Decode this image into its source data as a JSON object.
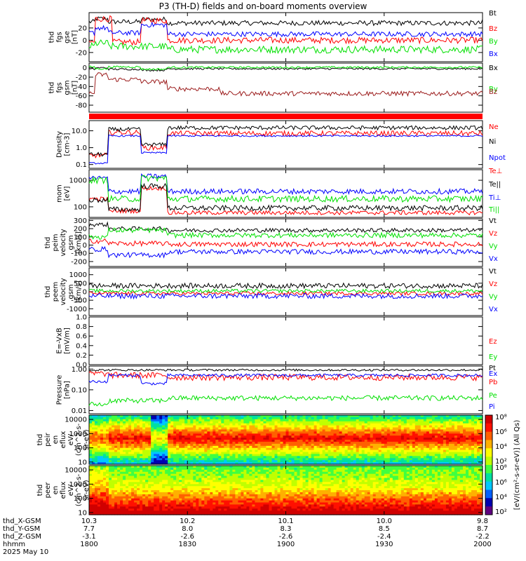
{
  "title": "P3 (TH-D) fields and on-board moments overview",
  "colors": {
    "black": "#000000",
    "red": "#ff0000",
    "green": "#00e000",
    "blue": "#0000ff",
    "darkred": "#9b1b1b"
  },
  "chart_data": [
    {
      "type": "line",
      "id": "fgs_gse",
      "ylabel_lines": [
        "thd",
        "fgs",
        "gse",
        "[nT]"
      ],
      "ylim": [
        -35,
        45
      ],
      "log": false,
      "yticks": [
        {
          "v": 20,
          "t": "20"
        },
        {
          "v": 0,
          "t": "0"
        },
        {
          "v": -20,
          "t": "-20"
        }
      ],
      "series": [
        {
          "name": "Bt",
          "color": "#000000",
          "level": 30,
          "noise": 4,
          "lows": [
            [
              5,
              15,
              35
            ],
            [
              40,
              60,
              34
            ],
            [
              60,
              300,
              28
            ]
          ]
        },
        {
          "name": "Bz",
          "color": "#ff0000",
          "level": -3,
          "noise": 5,
          "lows": [
            [
              5,
              18,
              35
            ],
            [
              40,
              60,
              32
            ],
            [
              60,
              300,
              0
            ]
          ]
        },
        {
          "name": "By",
          "color": "#00e000",
          "level": -10,
          "noise": 6,
          "lows": [
            [
              5,
              15,
              -5
            ],
            [
              40,
              60,
              -10
            ],
            [
              60,
              300,
              -15
            ]
          ]
        },
        {
          "name": "Bx",
          "color": "#0000ff",
          "level": 12,
          "noise": 4,
          "lows": [
            [
              5,
              15,
              20
            ],
            [
              40,
              60,
              25
            ],
            [
              60,
              300,
              10
            ]
          ]
        }
      ]
    },
    {
      "type": "line",
      "id": "fgs_gsm",
      "ylabel_lines": [
        "thd",
        "fgs",
        "gsm",
        "[nT]"
      ],
      "ylim": [
        -95,
        10
      ],
      "log": false,
      "yticks": [
        {
          "v": 0,
          "t": "0"
        },
        {
          "v": -20,
          "t": "-20"
        },
        {
          "v": -40,
          "t": "-40"
        },
        {
          "v": -60,
          "t": "-60"
        },
        {
          "v": -80,
          "t": "-80"
        }
      ],
      "series": [
        {
          "name": "Bx",
          "color": "#000000",
          "level": -3,
          "noise": 2,
          "lows": [
            [
              5,
              15,
              0
            ],
            [
              40,
              60,
              -5
            ],
            [
              60,
              300,
              -2
            ]
          ]
        },
        {
          "name": "By",
          "color": "#00e000",
          "level": 2,
          "noise": 2,
          "lows": [
            [
              5,
              15,
              -2
            ],
            [
              40,
              60,
              -3
            ],
            [
              60,
              300,
              1
            ]
          ]
        },
        {
          "name": "Bz",
          "color": "#9b1b1b",
          "level": -55,
          "noise": 5,
          "lows": [
            [
              5,
              15,
              -15
            ],
            [
              15,
              40,
              -25
            ],
            [
              40,
              60,
              -30
            ],
            [
              60,
              100,
              -45
            ],
            [
              100,
              300,
              -55
            ]
          ]
        }
      ]
    },
    {
      "type": "flag",
      "id": "flag",
      "color": "#ff0000"
    },
    {
      "type": "line",
      "id": "density",
      "ylabel_lines": [
        "Density",
        "[cm-3]"
      ],
      "ylim": [
        0.06,
        40
      ],
      "log": true,
      "yticks": [
        {
          "v": 10,
          "t": "10.0"
        },
        {
          "v": 1,
          "t": "1.0"
        },
        {
          "v": 0.1,
          "t": "0.1"
        }
      ],
      "series": [
        {
          "name": "Ne",
          "color": "#ff0000",
          "level": 7,
          "noise": 0.15,
          "lows": [
            [
              0,
              15,
              0.35
            ],
            [
              15,
              40,
              8
            ],
            [
              40,
              60,
              1
            ],
            [
              60,
              300,
              7
            ]
          ]
        },
        {
          "name": "Ni",
          "color": "#000000",
          "level": 15,
          "noise": 0.12,
          "lows": [
            [
              0,
              15,
              0.4
            ],
            [
              15,
              40,
              12
            ],
            [
              40,
              60,
              1.5
            ],
            [
              60,
              300,
              15
            ]
          ]
        },
        {
          "name": "Npot",
          "color": "#0000ff",
          "level": 5,
          "noise": 0.05,
          "lows": [
            [
              0,
              15,
              0.12
            ],
            [
              15,
              40,
              5
            ],
            [
              40,
              60,
              0.5
            ],
            [
              60,
              300,
              5
            ]
          ]
        }
      ]
    },
    {
      "type": "line",
      "id": "mom",
      "ylabel_lines": [
        "mom",
        "[eV]"
      ],
      "ylim": [
        40,
        2500
      ],
      "log": true,
      "yticks": [
        {
          "v": 1000,
          "t": "1000"
        },
        {
          "v": 100,
          "t": "100"
        }
      ],
      "series": [
        {
          "name": "Te⊥",
          "color": "#ff0000",
          "level": 60,
          "noise": 0.08,
          "lows": [
            [
              0,
              15,
              200
            ],
            [
              15,
              40,
              70
            ],
            [
              40,
              60,
              500
            ],
            [
              60,
              300,
              60
            ]
          ]
        },
        {
          "name": "Te||",
          "color": "#000000",
          "level": 90,
          "noise": 0.1,
          "lows": [
            [
              0,
              15,
              180
            ],
            [
              15,
              40,
              80
            ],
            [
              40,
              60,
              600
            ],
            [
              60,
              300,
              90
            ]
          ]
        },
        {
          "name": "Ti⊥",
          "color": "#0000ff",
          "level": 380,
          "noise": 0.1,
          "lows": [
            [
              0,
              15,
              1200
            ],
            [
              15,
              40,
              380
            ],
            [
              40,
              60,
              1400
            ],
            [
              60,
              300,
              380
            ]
          ]
        },
        {
          "name": "Ti||",
          "color": "#00e000",
          "level": 200,
          "noise": 0.12,
          "lows": [
            [
              0,
              15,
              1000
            ],
            [
              15,
              40,
              200
            ],
            [
              40,
              60,
              1200
            ],
            [
              60,
              300,
              200
            ]
          ]
        }
      ]
    },
    {
      "type": "line",
      "id": "peim",
      "ylabel_lines": [
        "thd",
        "peim",
        "velocity",
        "gsm",
        "[km/s]"
      ],
      "ylim": [
        -260,
        320
      ],
      "log": false,
      "yticks": [
        {
          "v": 300,
          "t": "300"
        },
        {
          "v": 200,
          "t": "200"
        },
        {
          "v": 100,
          "t": "100"
        },
        {
          "v": 0,
          "t": "0"
        },
        {
          "v": -100,
          "t": "-100"
        },
        {
          "v": -200,
          "t": "-200"
        }
      ],
      "series": [
        {
          "name": "Vt",
          "color": "#000000",
          "level": 180,
          "noise": 25,
          "lows": [
            [
              0,
              15,
              250
            ],
            [
              15,
              60,
              200
            ],
            [
              60,
              300,
              180
            ]
          ]
        },
        {
          "name": "Vz",
          "color": "#ff0000",
          "level": 10,
          "noise": 30,
          "lows": [
            [
              0,
              15,
              50
            ],
            [
              15,
              60,
              20
            ],
            [
              60,
              300,
              10
            ]
          ]
        },
        {
          "name": "Vy",
          "color": "#00e000",
          "level": 120,
          "noise": 30,
          "lows": [
            [
              0,
              15,
              100
            ],
            [
              15,
              60,
              180
            ],
            [
              60,
              300,
              120
            ]
          ]
        },
        {
          "name": "Vx",
          "color": "#0000ff",
          "level": -80,
          "noise": 30,
          "lows": [
            [
              0,
              15,
              -50
            ],
            [
              15,
              60,
              -120
            ],
            [
              60,
              300,
              -80
            ]
          ]
        }
      ]
    },
    {
      "type": "line",
      "id": "peem",
      "ylabel_lines": [
        "thd",
        "peem",
        "velocity",
        "gsm",
        "[km/s]"
      ],
      "ylim": [
        -1400,
        1400
      ],
      "log": false,
      "yticks": [
        {
          "v": 1000,
          "t": "1000"
        },
        {
          "v": 500,
          "t": "500"
        },
        {
          "v": 0,
          "t": "0"
        },
        {
          "v": -500,
          "t": "-500"
        },
        {
          "v": -1000,
          "t": "-1000"
        }
      ],
      "series": [
        {
          "name": "Vt",
          "color": "#000000",
          "level": 350,
          "noise": 150,
          "lows": [
            [
              0,
              300,
              350
            ]
          ]
        },
        {
          "name": "Vz",
          "color": "#ff0000",
          "level": -100,
          "noise": 100,
          "lows": [
            [
              0,
              300,
              -100
            ]
          ]
        },
        {
          "name": "Vy",
          "color": "#00e000",
          "level": 50,
          "noise": 100,
          "lows": [
            [
              0,
              300,
              50
            ]
          ]
        },
        {
          "name": "Vx",
          "color": "#0000ff",
          "level": -250,
          "noise": 150,
          "lows": [
            [
              0,
              300,
              -250
            ]
          ]
        }
      ]
    },
    {
      "type": "empty",
      "id": "exb",
      "ylabel_lines": [
        "E=-VxB",
        "[mV/m]"
      ],
      "ylim": [
        0,
        1
      ],
      "log": false,
      "yticks": [
        {
          "v": 1,
          "t": "1.0"
        },
        {
          "v": 0.8,
          "t": "0.8"
        },
        {
          "v": 0.6,
          "t": "0.6"
        },
        {
          "v": 0.4,
          "t": "0.4"
        },
        {
          "v": 0.2,
          "t": "0.2"
        },
        {
          "v": 0,
          "t": "0.0"
        }
      ],
      "series": [
        {
          "name": "Ez",
          "color": "#ff0000"
        },
        {
          "name": "Ey",
          "color": "#00e000"
        },
        {
          "name": "Ex",
          "color": "#0000ff"
        }
      ]
    },
    {
      "type": "line",
      "id": "pressure",
      "ylabel_lines": [
        "Pressure",
        "[nPa]"
      ],
      "ylim": [
        0.007,
        1.4
      ],
      "log": true,
      "yticks": [
        {
          "v": 1,
          "t": "1.00"
        },
        {
          "v": 0.1,
          "t": "0.10"
        },
        {
          "v": 0.01,
          "t": "0.01"
        }
      ],
      "series": [
        {
          "name": "Pt",
          "color": "#000000",
          "level": 0.9,
          "noise": 0.05,
          "lows": [
            [
              0,
              300,
              0.9
            ]
          ]
        },
        {
          "name": "Pb",
          "color": "#ff0000",
          "level": 0.45,
          "noise": 0.15,
          "lows": [
            [
              0,
              15,
              0.6
            ],
            [
              15,
              60,
              0.5
            ],
            [
              60,
              300,
              0.4
            ]
          ]
        },
        {
          "name": "Pe",
          "color": "#00e000",
          "level": 0.04,
          "noise": 0.12,
          "lows": [
            [
              0,
              15,
              0.02
            ],
            [
              15,
              60,
              0.03
            ],
            [
              60,
              300,
              0.04
            ]
          ]
        },
        {
          "name": "Pi",
          "color": "#0000ff",
          "level": 0.5,
          "noise": 0.07,
          "lows": [
            [
              0,
              15,
              0.25
            ],
            [
              15,
              40,
              0.5
            ],
            [
              40,
              60,
              0.2
            ],
            [
              60,
              300,
              0.5
            ]
          ]
        }
      ]
    },
    {
      "type": "heatmap",
      "id": "peir",
      "ylabel_lines": [
        "thd",
        "peir",
        "en",
        "eflux",
        "eV/",
        "(cm^2-s-",
        "sr-eV)"
      ],
      "ylim": [
        7,
        20000
      ],
      "log": true,
      "yticks": [
        {
          "v": 10000,
          "t": "10000"
        },
        {
          "v": 1000,
          "t": "1000"
        },
        {
          "v": 100,
          "t": "100"
        },
        {
          "v": 10,
          "t": "10"
        }
      ]
    },
    {
      "type": "heatmap",
      "id": "peer",
      "ylabel_lines": [
        "thd",
        "peer",
        "en",
        "eflux",
        "eV/",
        "(cm^2-s-",
        "sr-eV)"
      ],
      "ylim": [
        7,
        20000
      ],
      "log": true,
      "yticks": [
        {
          "v": 10000,
          "t": "10000"
        },
        {
          "v": 1000,
          "t": "1000"
        },
        {
          "v": 100,
          "t": "100"
        },
        {
          "v": 10,
          "t": "10"
        }
      ]
    }
  ],
  "colorbar": {
    "ticks": [
      "10⁸",
      "10⁶",
      "10⁴",
      "10²"
    ],
    "ticks2": [
      "10⁸",
      "10⁶",
      "10⁴",
      "10²"
    ],
    "label": "[eV/(cm²-s-sr-eV)] (All Qs)"
  },
  "x_axis": {
    "row_labels": [
      "thd_X-GSM",
      "thd_Y-GSM",
      "thd_Z-GSM",
      "hhmm",
      "2025 May 10"
    ],
    "columns": [
      {
        "x": "10.3",
        "y": "7.7",
        "z": "-3.1",
        "t": "1800"
      },
      {
        "x": "10.2",
        "y": "8.0",
        "z": "-2.6",
        "t": "1830"
      },
      {
        "x": "10.1",
        "y": "8.3",
        "z": "-2.6",
        "t": "1900"
      },
      {
        "x": "10.0",
        "y": "8.5",
        "z": "-2.4",
        "t": "1930"
      },
      {
        "x": "9.8",
        "y": "8.7",
        "z": "-2.2",
        "t": "2000"
      }
    ]
  }
}
